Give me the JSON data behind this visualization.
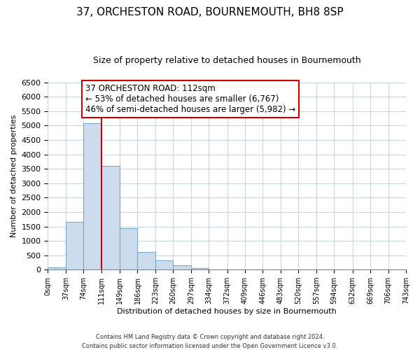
{
  "title": "37, ORCHESTON ROAD, BOURNEMOUTH, BH8 8SP",
  "subtitle": "Size of property relative to detached houses in Bournemouth",
  "xlabel": "Distribution of detached houses by size in Bournemouth",
  "ylabel": "Number of detached properties",
  "bin_edges": [
    0,
    37,
    74,
    111,
    149,
    186,
    223,
    260,
    297,
    334,
    372,
    409,
    446,
    483,
    520,
    557,
    594,
    632,
    669,
    706,
    743
  ],
  "bar_heights": [
    70,
    1650,
    5080,
    3600,
    1430,
    615,
    310,
    155,
    60,
    0,
    0,
    0,
    0,
    0,
    0,
    0,
    0,
    0,
    0,
    0
  ],
  "bar_color": "#ccdcec",
  "bar_edge_color": "#7aaac8",
  "vline_x": 111,
  "vline_color": "#cc0000",
  "annotation_title": "37 ORCHESTON ROAD: 112sqm",
  "annotation_line1": "← 53% of detached houses are smaller (6,767)",
  "annotation_line2": "46% of semi-detached houses are larger (5,982) →",
  "annotation_box_facecolor": "white",
  "annotation_box_edgecolor": "#cc0000",
  "ylim": [
    0,
    6500
  ],
  "yticks": [
    0,
    500,
    1000,
    1500,
    2000,
    2500,
    3000,
    3500,
    4000,
    4500,
    5000,
    5500,
    6000,
    6500
  ],
  "footer1": "Contains HM Land Registry data © Crown copyright and database right 2024.",
  "footer2": "Contains public sector information licensed under the Open Government Licence v3.0.",
  "background_color": "#ffffff",
  "grid_color": "#c8d4e4",
  "title_fontsize": 11,
  "subtitle_fontsize": 9,
  "axis_label_fontsize": 8,
  "tick_fontsize": 8,
  "annotation_fontsize": 8.5
}
